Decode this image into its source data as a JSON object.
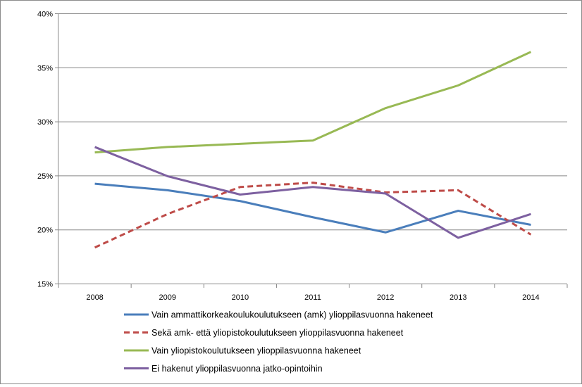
{
  "chart_data": {
    "type": "line",
    "title": "",
    "xlabel": "",
    "ylabel": "",
    "categories": [
      "2008",
      "2009",
      "2010",
      "2011",
      "2012",
      "2013",
      "2014"
    ],
    "ylim": [
      15,
      40
    ],
    "yticks": [
      "15%",
      "20%",
      "25%",
      "30%",
      "35%",
      "40%"
    ],
    "ytick_values": [
      15,
      20,
      25,
      30,
      35,
      40
    ],
    "grid": "horizontal",
    "legend_position": "bottom",
    "series": [
      {
        "name": "Vain ammattikorkeakoulukoulutukseen (amk) ylioppilasvuonna hakeneet",
        "color": "#4a7ebb",
        "dash": "solid",
        "values": [
          24.3,
          23.7,
          22.7,
          21.2,
          19.8,
          21.8,
          20.5
        ]
      },
      {
        "name": "Sekä amk- että yliopistokoulutukseen ylioppilasvuonna hakeneet",
        "color": "#be4b48",
        "dash": "dashed",
        "values": [
          18.4,
          21.5,
          24.0,
          24.4,
          23.5,
          23.7,
          19.6
        ]
      },
      {
        "name": "Vain yliopistokoulutukseen ylioppilasvuonna hakeneet",
        "color": "#98b954",
        "dash": "solid",
        "values": [
          27.2,
          27.7,
          28.0,
          28.3,
          31.3,
          33.4,
          36.5
        ]
      },
      {
        "name": "Ei hakenut ylioppilasvuonna jatko-opintoihin",
        "color": "#7d60a0",
        "dash": "solid",
        "values": [
          27.7,
          25.0,
          23.3,
          24.0,
          23.4,
          19.3,
          21.5
        ]
      }
    ]
  }
}
